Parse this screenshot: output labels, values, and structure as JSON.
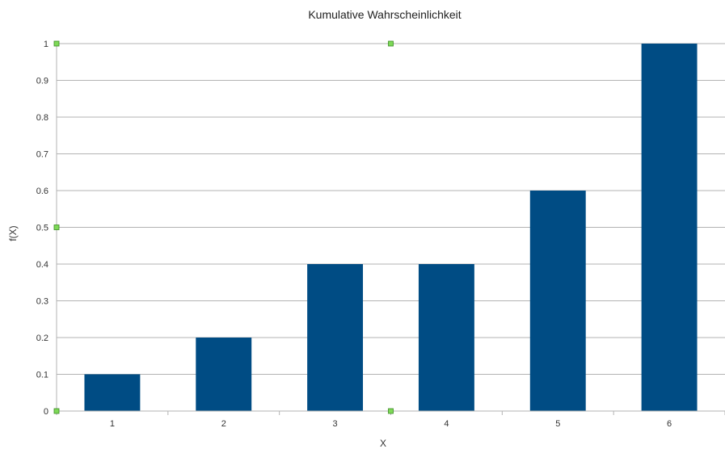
{
  "chart_data": {
    "type": "bar",
    "title": "Kumulative Wahrscheinlichkeit",
    "xlabel": "X",
    "ylabel": "f(X)",
    "categories": [
      "1",
      "2",
      "3",
      "4",
      "5",
      "6"
    ],
    "values": [
      0.1,
      0.2,
      0.4,
      0.4,
      0.6,
      1.0
    ],
    "ylim": [
      0,
      1
    ],
    "yticks": [
      "0",
      "0.1",
      "0.2",
      "0.3",
      "0.4",
      "0.5",
      "0.6",
      "0.7",
      "0.8",
      "0.9",
      "1"
    ],
    "grid": true,
    "legend": "none",
    "bar_color": "#004c84",
    "grid_color": "#b3b3b3",
    "selection_handle_color": "#7ed957"
  }
}
